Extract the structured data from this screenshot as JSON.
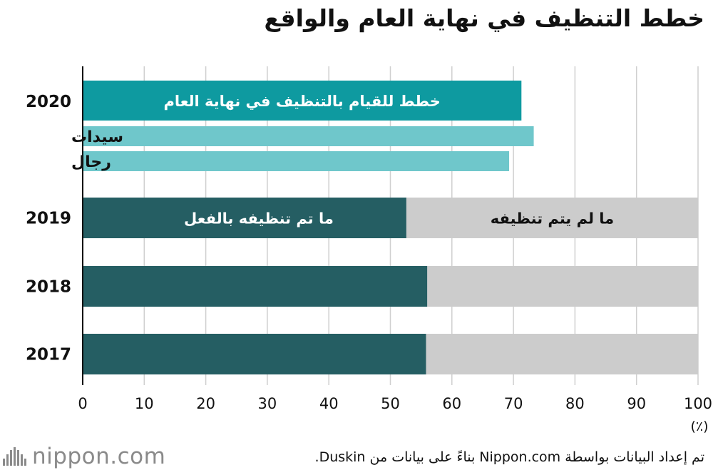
{
  "title": "خطط التنظيف في نهاية العام والواقع",
  "footer": {
    "logo_text": "nippon.com",
    "note": "تم إعداد البيانات بواسطة Nippon.com بناءً على بيانات من Duskin."
  },
  "colors": {
    "teal": "#0e9aa0",
    "light_teal": "#6fc7cb",
    "dark_teal": "#255e63",
    "gray": "#cccccc",
    "grid": "#cfcfcf",
    "text": "#111111"
  },
  "chart_data": {
    "type": "bar",
    "orientation": "horizontal",
    "xlim": [
      0,
      100
    ],
    "xticks": [
      0,
      10,
      20,
      30,
      40,
      50,
      60,
      70,
      80,
      90,
      100
    ],
    "xunit": "(٪)",
    "grid": true,
    "plan_2020": {
      "category": "2020",
      "total_label": "خطط للقيام بالتنظيف في نهاية العام",
      "total": 71.3,
      "subgroups": [
        {
          "label": "سيدات",
          "value": 73.3
        },
        {
          "label": "رجال",
          "value": 69.3
        }
      ]
    },
    "actual": {
      "categories": [
        "2019",
        "2018",
        "2017"
      ],
      "series": [
        {
          "name": "ما تم تنظيفه بالفعل",
          "values": [
            52.6,
            56.0,
            55.8
          ]
        },
        {
          "name": "ما لم يتم تنظيفه",
          "values": [
            47.4,
            44.0,
            44.2
          ]
        }
      ]
    }
  }
}
